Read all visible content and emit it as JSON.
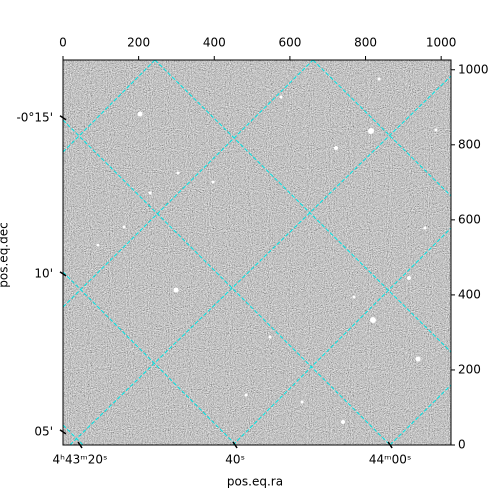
{
  "chart_data": {
    "type": "image",
    "xlabel": "pos.eq.ra",
    "ylabel": "pos.eq.dec",
    "xlim": [
      0,
      1026
    ],
    "ylim": [
      0,
      1026
    ],
    "xticks": [
      0,
      200,
      400,
      600,
      800,
      1000
    ],
    "yticks": [
      0,
      200,
      400,
      600,
      800,
      1000
    ],
    "ra_ticks": [
      {
        "value": 45,
        "label": "4ʰ43ᵐ20ˢ"
      },
      {
        "value": 455,
        "label": "40ˢ"
      },
      {
        "value": 865,
        "label": "44ᵐ00ˢ"
      }
    ],
    "dec_ticks": [
      {
        "value": 872,
        "label": "-0°15'"
      },
      {
        "value": 456,
        "label": "10'"
      },
      {
        "value": 35,
        "label": "05'"
      }
    ],
    "grid_color": "#00e5e5"
  }
}
